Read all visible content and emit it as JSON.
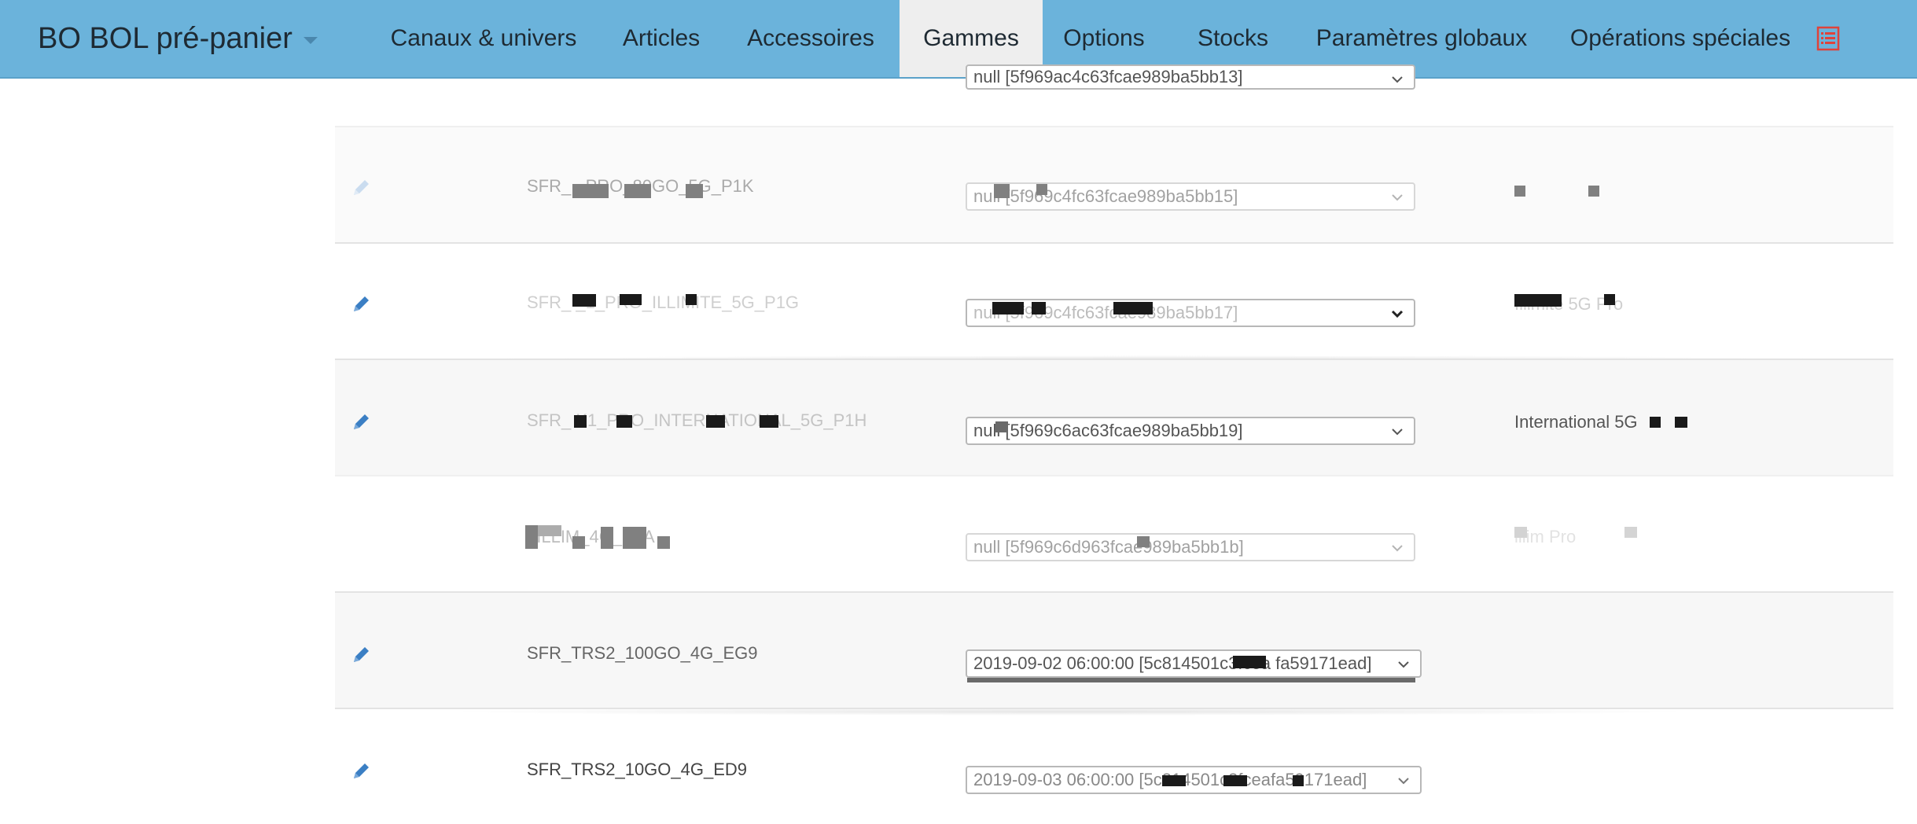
{
  "app": {
    "title": "BO BOL pré-panier"
  },
  "nav": {
    "items": [
      {
        "label": "Canaux & univers"
      },
      {
        "label": "Articles"
      },
      {
        "label": "Accessoires"
      },
      {
        "label": "Gammes",
        "active": true
      },
      {
        "label": "Options"
      },
      {
        "label": "Stocks"
      },
      {
        "label": "Paramètres globaux"
      },
      {
        "label": "Opérations spéciales"
      }
    ],
    "icon": "document-list-icon",
    "colors": {
      "navbar": "#6bb3db",
      "active_tab": "#eeeeee",
      "document_icon": "#e0423a"
    }
  },
  "rows": [
    {
      "code": "",
      "select_value": "null [5f969ac4c63fcae989ba5bb13]",
      "label": ""
    },
    {
      "code": "SFR_  _PRO_80GO_5G_P1K",
      "select_value": "null [5f969c4fc63fcae989ba5bb15]",
      "label": ""
    },
    {
      "code": "SFR_  _1_PRO_ILLIMITE_5G_P1G",
      "select_value": "null [5f969c4fc63fcae989ba5bb17]",
      "label": "Illimité 5G Pro"
    },
    {
      "code": "SFR_  K1_PRO_INTERNATIONAL_5G_P1H",
      "select_value": "null [5f969c6ac63fcae989ba5bb19]",
      "label": "International 5G"
    },
    {
      "code": "  _ILLIM_4G_P1A",
      "select_value": "null [5f969c6d963fcae989ba5bb1b]",
      "label": "illim  Pro"
    },
    {
      "code": "SFR_TRS2_100GO_4G_EG9",
      "select_value": "2019-09-02 06:00:00 [5c814501c3fcea fa59171ead]",
      "label": ""
    },
    {
      "code": "SFR_TRS2_10GO_4G_ED9",
      "select_value": "2019-09-03 06:00:00 [5c814501c3fceafa59171ead]",
      "label": ""
    }
  ],
  "icons": {
    "edit": "pencil-icon",
    "select_chevron": "chevron-down-icon",
    "pencil_color": "#3b7fc4"
  }
}
